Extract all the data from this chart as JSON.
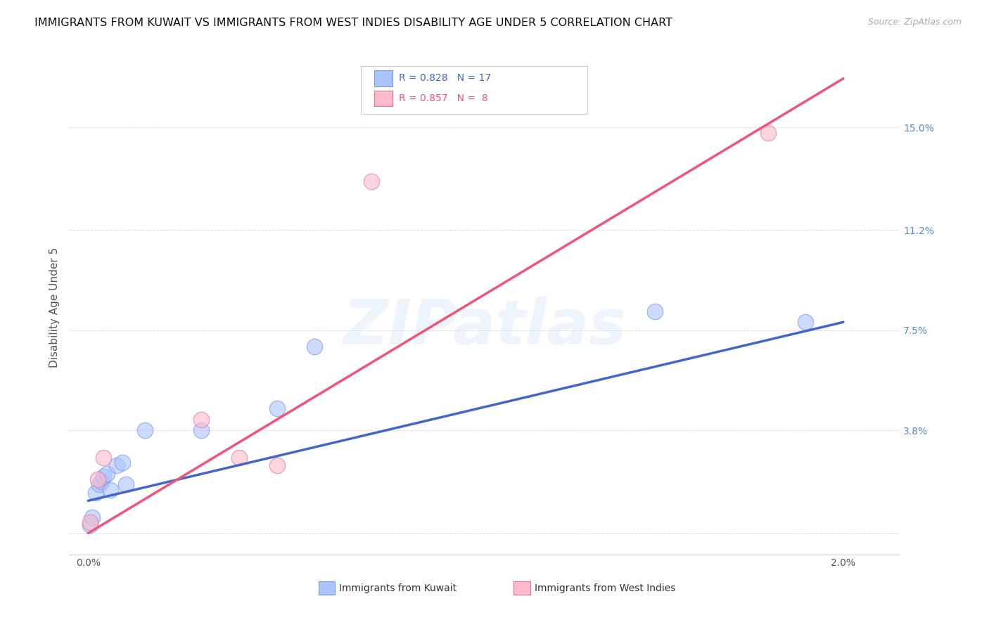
{
  "title": "IMMIGRANTS FROM KUWAIT VS IMMIGRANTS FROM WEST INDIES DISABILITY AGE UNDER 5 CORRELATION CHART",
  "source": "Source: ZipAtlas.com",
  "ylabel": "Disability Age Under 5",
  "label_kuwait": "Immigrants from Kuwait",
  "label_west_indies": "Immigrants from West Indies",
  "kuwait_R": 0.828,
  "kuwait_N": 17,
  "west_indies_R": 0.857,
  "west_indies_N": 8,
  "kuwait_scatter_color": "#aac4ff",
  "kuwait_edge_color": "#7799dd",
  "west_indies_scatter_color": "#ffbbcc",
  "west_indies_edge_color": "#dd7799",
  "kuwait_line_color": "#4466cc",
  "west_indies_line_color": "#ee5577",
  "tick_color": "#5588cc",
  "kuwait_scatter_x": [
    5e-05,
    0.0001,
    0.0002,
    0.0003,
    0.00035,
    0.0004,
    0.0005,
    0.0006,
    0.00075,
    0.0009,
    0.001,
    0.0015,
    0.003,
    0.005,
    0.006,
    0.015,
    0.019
  ],
  "kuwait_scatter_y": [
    0.003,
    0.006,
    0.015,
    0.018,
    0.019,
    0.021,
    0.022,
    0.016,
    0.025,
    0.026,
    0.018,
    0.038,
    0.038,
    0.046,
    0.069,
    0.082,
    0.078
  ],
  "west_indies_scatter_x": [
    5e-05,
    0.00025,
    0.0004,
    0.003,
    0.004,
    0.005,
    0.0075,
    0.018
  ],
  "west_indies_scatter_y": [
    0.004,
    0.02,
    0.028,
    0.042,
    0.028,
    0.025,
    0.13,
    0.148
  ],
  "kuwait_line_x": [
    0.0,
    0.02
  ],
  "kuwait_line_y": [
    0.012,
    0.078
  ],
  "west_indies_line_x": [
    0.0,
    0.02
  ],
  "west_indies_line_y": [
    0.0,
    0.168
  ],
  "xlim": [
    -0.0005,
    0.0215
  ],
  "ylim": [
    -0.008,
    0.175
  ],
  "y_ticks": [
    0.0,
    0.038,
    0.075,
    0.112,
    0.15
  ],
  "y_tick_labels": [
    "",
    "3.8%",
    "7.5%",
    "11.2%",
    "15.0%"
  ],
  "x_ticks": [
    0.0,
    0.005,
    0.01,
    0.015,
    0.02
  ],
  "x_tick_labels": [
    "0.0%",
    "",
    "",
    "",
    "2.0%"
  ],
  "watermark": "ZIPatlas",
  "background_color": "#ffffff",
  "grid_color": "#dddddd",
  "title_fontsize": 11.5,
  "tick_fontsize": 10,
  "legend_fontsize": 10,
  "ylabel_fontsize": 11
}
